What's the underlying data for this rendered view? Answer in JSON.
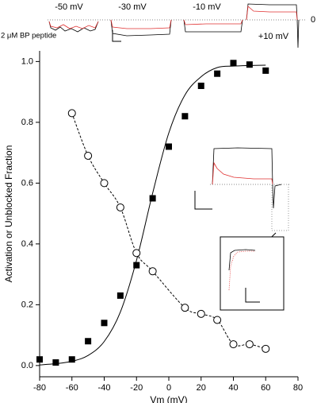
{
  "chart_data": {
    "type": "scatter",
    "xlabel": "Vm (mV)",
    "ylabel": "Activation or Unblocked Fraction",
    "xlim": [
      -80,
      80
    ],
    "ylim": [
      -0.037,
      1.035
    ],
    "xticks": [
      -80,
      -60,
      -40,
      -20,
      0,
      20,
      40,
      60,
      80
    ],
    "yticks": [
      {
        "value": 0,
        "label": "0.0"
      },
      0.2,
      0.4,
      0.6,
      0.8,
      {
        "value": 1,
        "label": "1.0"
      }
    ],
    "series": [
      {
        "marker": "square",
        "color": "#000000",
        "x": [
          -80,
          -70,
          -60,
          -50,
          -40,
          -30,
          -20,
          -10,
          0,
          10,
          20,
          30,
          40,
          50,
          60
        ],
        "values": [
          0.02,
          0.01,
          0.02,
          0.08,
          0.14,
          0.23,
          0.33,
          0.55,
          0.72,
          0.82,
          0.92,
          0.96,
          0.995,
          0.99,
          0.97
        ]
      },
      {
        "marker": "circle",
        "line": "dashed",
        "color": "#000000",
        "x": [
          -60,
          -50,
          -40,
          -30,
          -20,
          -10,
          10,
          20,
          30,
          40,
          50,
          60
        ],
        "values": [
          0.83,
          0.69,
          0.6,
          0.52,
          0.37,
          0.31,
          0.19,
          0.17,
          0.15,
          0.07,
          0.07,
          0.055
        ]
      },
      {
        "line": "solid",
        "color": "#000000",
        "x": [
          -80,
          -70,
          -60,
          -50,
          -40,
          -30,
          -20,
          -10,
          0,
          10,
          20,
          30,
          40,
          50,
          60
        ],
        "values": [
          0.002,
          0.006,
          0.014,
          0.033,
          0.079,
          0.176,
          0.346,
          0.567,
          0.765,
          0.89,
          0.95,
          0.98,
          0.985,
          0.987,
          0.988
        ]
      }
    ],
    "trace_labels": [
      "-50 mV",
      "-30 mV",
      "-10 mV",
      "+10 mV",
      "0"
    ],
    "condition_label": "2 μM BP peptide",
    "condition_color": "#e03030"
  }
}
